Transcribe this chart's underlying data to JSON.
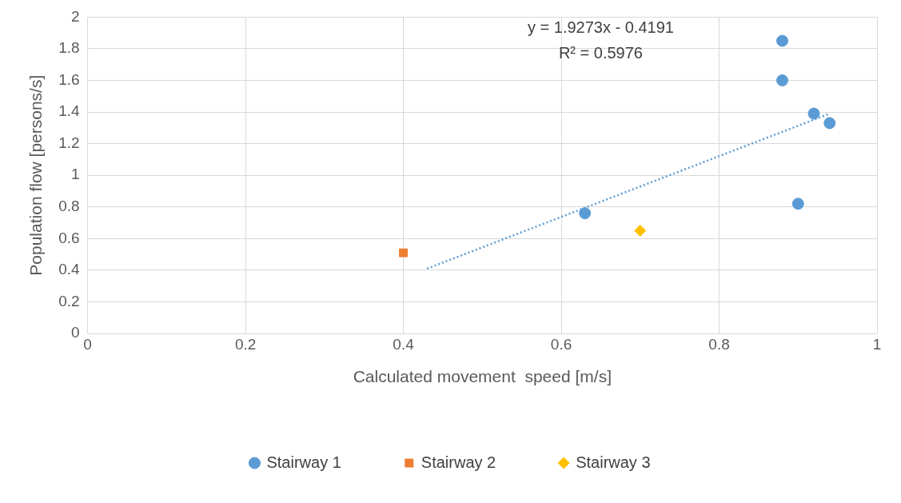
{
  "chart_data": {
    "type": "scatter",
    "xlabel": "Calculated movement  speed [m/s]",
    "ylabel": "Population flow [persons/s]",
    "xlim": [
      0,
      1
    ],
    "xticks": [
      0,
      0.2,
      0.4,
      0.6,
      0.8,
      1
    ],
    "ylim": [
      0,
      2
    ],
    "yticks": [
      0,
      0.2,
      0.4,
      0.6,
      0.8,
      1,
      1.2,
      1.4,
      1.6,
      1.8,
      2
    ],
    "grid": true,
    "legend": "bottom",
    "annotations": [
      "y = 1.9273x - 0.4191",
      "R² = 0.5976"
    ],
    "series": [
      {
        "name": "Stairway 1",
        "color": "#5b9bd5",
        "marker": "circle",
        "x": [
          0.88,
          0.88,
          0.92,
          0.94,
          0.9,
          0.63
        ],
        "values": [
          1.85,
          1.6,
          1.39,
          1.33,
          0.82,
          0.76
        ]
      },
      {
        "name": "Stairway 2",
        "color": "#ed7d31",
        "marker": "square",
        "x": [
          0.4
        ],
        "values": [
          0.51
        ]
      },
      {
        "name": "Stairway 3",
        "color": "#ffc000",
        "marker": "diamond",
        "x": [
          0.7
        ],
        "values": [
          0.65
        ]
      },
      {
        "type": "line",
        "color": "#5b9bd5",
        "line_style": "dotted",
        "marker": "none",
        "x": [
          0.43,
          0.94
        ],
        "values": [
          0.41,
          1.39
        ]
      }
    ]
  }
}
